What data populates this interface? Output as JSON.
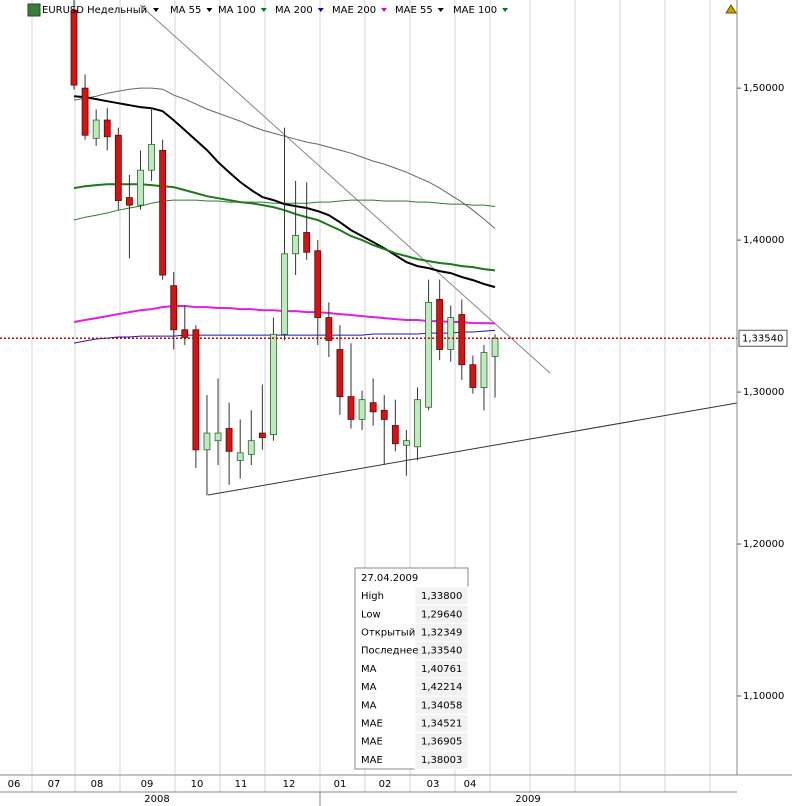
{
  "chart_data": {
    "type": "candlestick",
    "title": "EURUSD Недельный",
    "categories": [
      null,
      null,
      null,
      null,
      null,
      null,
      null,
      null,
      null,
      null,
      null,
      null,
      null,
      null,
      null,
      null,
      null,
      null,
      null,
      null,
      null,
      null,
      null,
      null,
      null,
      null,
      null,
      null,
      null,
      null,
      null,
      null,
      null,
      null,
      null,
      null,
      null,
      null,
      null
    ],
    "open": [
      1.5513,
      1.5,
      1.467,
      1.479,
      1.469,
      1.428,
      1.423,
      1.446,
      1.459,
      1.37,
      1.341,
      1.341,
      1.262,
      1.268,
      1.276,
      1.255,
      1.259,
      1.273,
      1.272,
      1.338,
      1.391,
      1.405,
      1.393,
      1.349,
      1.328,
      1.297,
      1.282,
      1.293,
      1.288,
      1.278,
      1.265,
      1.264,
      1.29,
      1.361,
      1.328,
      1.351,
      1.318,
      1.303,
      1.32349
    ],
    "high": [
      1.5579,
      1.509,
      1.486,
      1.487,
      1.474,
      1.443,
      1.459,
      1.487,
      1.466,
      1.379,
      1.357,
      1.344,
      1.298,
      1.309,
      1.293,
      1.282,
      1.288,
      1.305,
      1.349,
      1.474,
      1.439,
      1.438,
      1.4,
      1.359,
      1.344,
      1.332,
      1.301,
      1.309,
      1.298,
      1.295,
      1.275,
      1.303,
      1.374,
      1.374,
      1.357,
      1.361,
      1.324,
      1.331,
      1.338
    ],
    "low": [
      1.499,
      1.466,
      1.462,
      1.459,
      1.42,
      1.388,
      1.42,
      1.439,
      1.374,
      1.328,
      1.331,
      1.25,
      1.232,
      1.252,
      1.239,
      1.243,
      1.252,
      1.262,
      1.268,
      1.334,
      1.377,
      1.387,
      1.331,
      1.323,
      1.285,
      1.276,
      1.275,
      1.278,
      1.252,
      1.261,
      1.245,
      1.255,
      1.288,
      1.321,
      1.32,
      1.308,
      1.299,
      1.288,
      1.2964
    ],
    "close": [
      1.502,
      1.469,
      1.479,
      1.468,
      1.426,
      1.423,
      1.446,
      1.463,
      1.377,
      1.341,
      1.336,
      1.262,
      1.273,
      1.273,
      1.261,
      1.26,
      1.268,
      1.27,
      1.338,
      1.391,
      1.403,
      1.392,
      1.349,
      1.334,
      1.297,
      1.282,
      1.295,
      1.287,
      1.282,
      1.266,
      1.268,
      1.295,
      1.359,
      1.328,
      1.349,
      1.318,
      1.303,
      1.326,
      1.3354
    ],
    "up_color": "#bfe9bf",
    "down_color": "#d41414",
    "series": [
      {
        "name": "MA 55",
        "color": "#000000",
        "line_color": "#666666",
        "width": 1,
        "values": [
          1.4921,
          1.4934,
          1.4947,
          1.4967,
          1.498,
          1.4993,
          1.5,
          1.5,
          1.4993,
          1.4954,
          1.4928,
          1.4895,
          1.4862,
          1.4836,
          1.4809,
          1.4783,
          1.475,
          1.4724,
          1.4704,
          1.4684,
          1.4664,
          1.4645,
          1.4632,
          1.4612,
          1.4592,
          1.4572,
          1.4546,
          1.452,
          1.45,
          1.4474,
          1.4447,
          1.4414,
          1.4382,
          1.4342,
          1.4296,
          1.425,
          1.4197,
          1.4138,
          1.40761
        ]
      },
      {
        "name": "MA 100",
        "color": "#008000",
        "line_color": "#2e7d32",
        "width": 1,
        "values": [
          1.4132,
          1.4151,
          1.4164,
          1.4178,
          1.4197,
          1.4211,
          1.4224,
          1.4243,
          1.4257,
          1.4263,
          1.4263,
          1.4263,
          1.4257,
          1.4257,
          1.425,
          1.425,
          1.425,
          1.425,
          1.4243,
          1.4243,
          1.4243,
          1.4243,
          1.425,
          1.425,
          1.4257,
          1.4263,
          1.4263,
          1.4263,
          1.4257,
          1.4257,
          1.4257,
          1.425,
          1.425,
          1.4243,
          1.4237,
          1.4237,
          1.423,
          1.423,
          1.42214
        ]
      },
      {
        "name": "MA 200",
        "color": "#0000a0",
        "line_color": "#1a1ab0",
        "width": 1,
        "values": [
          1.3322,
          1.3336,
          1.3349,
          1.3355,
          1.3362,
          1.3362,
          1.3368,
          1.3368,
          1.3368,
          1.3368,
          1.3375,
          1.3375,
          1.3375,
          1.3375,
          1.3375,
          1.3375,
          1.3375,
          1.3375,
          1.3375,
          1.3375,
          1.3375,
          1.3375,
          1.3375,
          1.3375,
          1.3375,
          1.3375,
          1.3375,
          1.3382,
          1.3382,
          1.3382,
          1.3382,
          1.3382,
          1.3388,
          1.3388,
          1.3388,
          1.3395,
          1.3395,
          1.3401,
          1.34058
        ]
      },
      {
        "name": "MAE 200",
        "color": "#e000e0",
        "line_color": "#e020e0",
        "width": 2,
        "values": [
          1.3461,
          1.3474,
          1.3487,
          1.35,
          1.3513,
          1.3526,
          1.3539,
          1.3546,
          1.3559,
          1.3566,
          1.3566,
          1.3559,
          1.3559,
          1.3553,
          1.3553,
          1.3546,
          1.3546,
          1.3539,
          1.3539,
          1.3533,
          1.3533,
          1.3526,
          1.3526,
          1.352,
          1.3513,
          1.3507,
          1.35,
          1.3493,
          1.3487,
          1.348,
          1.3474,
          1.3474,
          1.3467,
          1.3467,
          1.3461,
          1.3461,
          1.3454,
          1.3454,
          1.34521
        ]
      },
      {
        "name": "MAE 55",
        "color": "#000000",
        "line_color": "#000000",
        "width": 2,
        "values": [
          1.4947,
          1.4941,
          1.4928,
          1.4914,
          1.4901,
          1.4888,
          1.4875,
          1.4868,
          1.4849,
          1.4789,
          1.4724,
          1.4658,
          1.4592,
          1.4513,
          1.4447,
          1.4382,
          1.4329,
          1.4283,
          1.4263,
          1.4237,
          1.4224,
          1.4211,
          1.4191,
          1.4164,
          1.4118,
          1.4066,
          1.4026,
          1.3987,
          1.3947,
          1.3901,
          1.3855,
          1.3829,
          1.3816,
          1.3796,
          1.3783,
          1.3757,
          1.3737,
          1.3711,
          1.36905
        ]
      },
      {
        "name": "MAE 100",
        "color": "#008000",
        "line_color": "#1a7a1a",
        "width": 2,
        "values": [
          1.4342,
          1.4355,
          1.4362,
          1.4368,
          1.4368,
          1.4368,
          1.4368,
          1.4362,
          1.4355,
          1.4349,
          1.4329,
          1.4309,
          1.4289,
          1.4276,
          1.4263,
          1.425,
          1.4243,
          1.423,
          1.4217,
          1.4197,
          1.4171,
          1.4151,
          1.4132,
          1.4099,
          1.4066,
          1.4026,
          1.4,
          1.3967,
          1.3941,
          1.3914,
          1.3895,
          1.3875,
          1.3862,
          1.3849,
          1.3842,
          1.3829,
          1.3822,
          1.3809,
          1.38003
        ]
      }
    ],
    "ylim": [
      1.048,
      1.558
    ],
    "yticks": [
      {
        "value": 1.1,
        "label": "1,10000"
      },
      {
        "value": 1.2,
        "label": "1,20000"
      },
      {
        "value": 1.3,
        "label": "1,30000"
      },
      {
        "value": 1.4,
        "label": "1,40000"
      },
      {
        "value": 1.5,
        "label": "1,50000"
      }
    ],
    "last": {
      "value": 1.3354,
      "label": "1,33540"
    },
    "months": [
      "06",
      "07",
      "08",
      "09",
      "10",
      "11",
      "12",
      "01",
      "02",
      "03",
      "04"
    ],
    "years": [
      "2008",
      "2009"
    ],
    "grid": true
  },
  "tooltip": {
    "date": "27.04.2009",
    "rows": [
      [
        "High",
        "1,33800"
      ],
      [
        "Low",
        "1,29640"
      ],
      [
        "Открытый",
        "1,32349"
      ],
      [
        "Последнее",
        "1,33540"
      ],
      [
        "MA",
        "1,40761"
      ],
      [
        "MA",
        "1,42214"
      ],
      [
        "MA",
        "1,34058"
      ],
      [
        "MAE",
        "1,34521"
      ],
      [
        "MAE",
        "1,36905"
      ],
      [
        "MAE",
        "1,38003"
      ]
    ]
  }
}
